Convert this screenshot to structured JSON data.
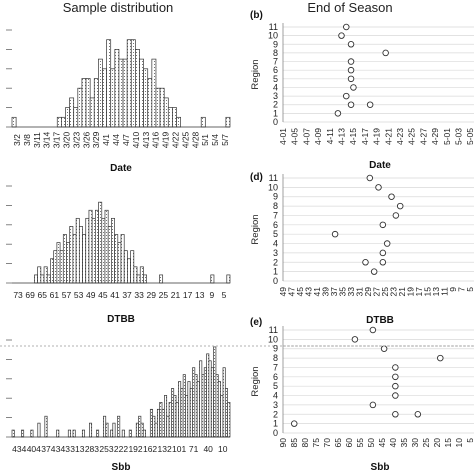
{
  "headers": {
    "left": "Sample distribution",
    "right": "End of Season"
  },
  "colors": {
    "bar_fill": "#ffffff",
    "bar_stroke": "#333333",
    "grid": "#d9d9d9",
    "marker_stroke": "#333333",
    "dashed_ref": "#999999"
  },
  "chart_data": [
    {
      "panel": "left-top",
      "type": "bar",
      "xlabel": "Date",
      "tick_labels": [
        "3/2",
        "3/8",
        "3/11",
        "3/14",
        "3/17",
        "3/20",
        "3/23",
        "3/26",
        "3/29",
        "4/1",
        "4/4",
        "4/7",
        "4/10",
        "4/13",
        "4/16",
        "4/19",
        "4/22",
        "4/25",
        "4/28",
        "5/1",
        "5/4",
        "5/7"
      ],
      "values": [
        1,
        0,
        0,
        0,
        0,
        0,
        0,
        0,
        0,
        0,
        0,
        1,
        1,
        2,
        3,
        2,
        4,
        5,
        5,
        3,
        5,
        7,
        6,
        9,
        6,
        8,
        7,
        7,
        9,
        9,
        8,
        7,
        6,
        5,
        7,
        4,
        4,
        3,
        2,
        2,
        1,
        0,
        0,
        0,
        0,
        0,
        1,
        0,
        0,
        0,
        0,
        0,
        1
      ],
      "ylim": [
        0,
        10
      ]
    },
    {
      "panel": "left-middle",
      "type": "bar",
      "xlabel": "DTBB",
      "tick_labels": [
        "73",
        "69",
        "65",
        "61",
        "57",
        "53",
        "49",
        "45",
        "41",
        "37",
        "33",
        "29",
        "25",
        "21",
        "17",
        "13",
        "9",
        "5"
      ],
      "values": [
        0,
        0,
        0,
        0,
        0,
        0,
        0,
        1,
        2,
        1,
        2,
        1,
        3,
        4,
        5,
        4,
        6,
        5,
        7,
        6,
        8,
        7,
        6,
        8,
        9,
        8,
        9,
        10,
        8,
        9,
        7,
        8,
        6,
        5,
        6,
        4,
        3,
        4,
        2,
        1,
        2,
        1,
        0,
        0,
        0,
        0,
        1,
        0,
        0,
        0,
        0,
        0,
        0,
        0,
        0,
        0,
        0,
        0,
        0,
        0,
        0,
        0,
        1,
        0,
        0,
        0,
        0,
        1
      ],
      "ylim": [
        0,
        12
      ]
    },
    {
      "panel": "left-bottom",
      "type": "bar",
      "xlabel": "Sbb",
      "tick_labels": [
        "434",
        "404",
        "374",
        "343",
        "313",
        "283",
        "253",
        "222",
        "192",
        "162",
        "132",
        "101",
        "71",
        "40",
        "10"
      ],
      "values": [
        1,
        0,
        0,
        0,
        1,
        0,
        0,
        0,
        1,
        0,
        0,
        2,
        0,
        0,
        3,
        0,
        0,
        0,
        0,
        1,
        0,
        0,
        0,
        0,
        1,
        0,
        1,
        0,
        0,
        0,
        1,
        0,
        0,
        2,
        0,
        0,
        1,
        0,
        0,
        3,
        2,
        0,
        1,
        2,
        0,
        3,
        0,
        1,
        0,
        0,
        1,
        0,
        0,
        2,
        3,
        2,
        1,
        0,
        0,
        4,
        3,
        2,
        4,
        5,
        4,
        6,
        3,
        5,
        7,
        6,
        5,
        8,
        7,
        9,
        6,
        8,
        7,
        10,
        9,
        8,
        11,
        9,
        10,
        12,
        11,
        10,
        13,
        9,
        8,
        6,
        10,
        7,
        5
      ],
      "ylim": [
        0,
        14
      ]
    },
    {
      "panel": "b",
      "type": "scatter",
      "label": "(b)",
      "xlabel": "Date",
      "ylabel": "Region",
      "y_ticks": [
        0,
        1,
        2,
        3,
        4,
        5,
        6,
        7,
        8,
        9,
        10,
        11
      ],
      "x_tick_labels": [
        "4-01",
        "4-05",
        "4-07",
        "4-09",
        "4-11",
        "4-13",
        "4-15",
        "4-17",
        "4-19",
        "4-21",
        "4-23",
        "4-25",
        "4-27",
        "4-29",
        "5-01",
        "5-03",
        "5-05"
      ],
      "points": [
        {
          "x": 4.6,
          "y": 1
        },
        {
          "x": 5.7,
          "y": 2
        },
        {
          "x": 7.3,
          "y": 2
        },
        {
          "x": 5.3,
          "y": 3
        },
        {
          "x": 5.9,
          "y": 4
        },
        {
          "x": 5.7,
          "y": 5
        },
        {
          "x": 5.7,
          "y": 6
        },
        {
          "x": 5.7,
          "y": 7
        },
        {
          "x": 8.6,
          "y": 8
        },
        {
          "x": 5.7,
          "y": 9
        },
        {
          "x": 4.9,
          "y": 10
        },
        {
          "x": 5.3,
          "y": 11
        }
      ],
      "xlim": [
        0,
        16
      ]
    },
    {
      "panel": "d",
      "type": "scatter",
      "label": "(d)",
      "xlabel": "DTBB",
      "ylabel": "Region",
      "y_ticks": [
        0,
        1,
        2,
        3,
        4,
        5,
        6,
        7,
        8,
        9,
        10,
        11
      ],
      "x_tick_labels": [
        "49",
        "47",
        "45",
        "43",
        "41",
        "39",
        "37",
        "35",
        "33",
        "31",
        "29",
        "27",
        "25",
        "23",
        "21",
        "19",
        "17",
        "15",
        "13",
        "11",
        "9",
        "7",
        "5"
      ],
      "points": [
        {
          "x": 28,
          "y": 1
        },
        {
          "x": 26,
          "y": 2
        },
        {
          "x": 30,
          "y": 2
        },
        {
          "x": 26,
          "y": 3
        },
        {
          "x": 25,
          "y": 4
        },
        {
          "x": 37,
          "y": 5
        },
        {
          "x": 26,
          "y": 6
        },
        {
          "x": 23,
          "y": 7
        },
        {
          "x": 22,
          "y": 8
        },
        {
          "x": 24,
          "y": 9
        },
        {
          "x": 27,
          "y": 10
        },
        {
          "x": 29,
          "y": 11
        }
      ],
      "xlim": [
        49,
        5
      ]
    },
    {
      "panel": "e",
      "type": "scatter",
      "label": "(e)",
      "xlabel": "Sbb",
      "ylabel": "Region",
      "y_ticks": [
        0,
        1,
        2,
        3,
        4,
        5,
        6,
        7,
        8,
        9,
        10,
        11
      ],
      "x_tick_labels": [
        "90",
        "85",
        "80",
        "75",
        "70",
        "65",
        "60",
        "55",
        "50",
        "45",
        "40",
        "35",
        "30",
        "25",
        "20",
        "15",
        "10",
        "5"
      ],
      "points": [
        {
          "x": 85,
          "y": 1
        },
        {
          "x": 40,
          "y": 2
        },
        {
          "x": 30,
          "y": 2
        },
        {
          "x": 50,
          "y": 3
        },
        {
          "x": 40,
          "y": 4
        },
        {
          "x": 40,
          "y": 5
        },
        {
          "x": 40,
          "y": 6
        },
        {
          "x": 40,
          "y": 7
        },
        {
          "x": 20,
          "y": 8
        },
        {
          "x": 45,
          "y": 9
        },
        {
          "x": 58,
          "y": 10
        },
        {
          "x": 50,
          "y": 11
        }
      ],
      "xlim": [
        90,
        5
      ]
    }
  ]
}
